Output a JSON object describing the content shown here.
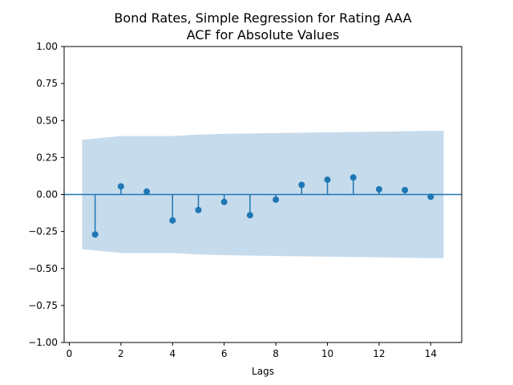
{
  "chart_data": {
    "type": "scatter",
    "subtype": "acf-stem",
    "title": "Bond Rates, Simple Regression for Rating AAA",
    "subtitle": "ACF for Absolute Values",
    "xlabel": "Lags",
    "ylabel": "",
    "xlim": [
      -0.2,
      15.2
    ],
    "ylim": [
      -1.0,
      1.0
    ],
    "xticks": [
      0,
      2,
      4,
      6,
      8,
      10,
      12,
      14
    ],
    "xtick_labels": [
      "0",
      "2",
      "4",
      "6",
      "8",
      "10",
      "12",
      "14"
    ],
    "yticks": [
      -1.0,
      -0.75,
      -0.5,
      -0.25,
      0.0,
      0.25,
      0.5,
      0.75,
      1.0
    ],
    "ytick_labels": [
      "−1.00",
      "−0.75",
      "−0.50",
      "−0.25",
      "0.00",
      "0.25",
      "0.50",
      "0.75",
      "1.00"
    ],
    "grid": false,
    "colors": {
      "series": "#1f77b4",
      "confidence_band": "#c6dbec"
    },
    "series": [
      {
        "lags": [
          1,
          2,
          3,
          4,
          5,
          6,
          7,
          8,
          9,
          10,
          11,
          12,
          13,
          14
        ],
        "values": [
          -0.27,
          0.055,
          0.02,
          -0.175,
          -0.105,
          -0.05,
          -0.14,
          -0.035,
          0.065,
          0.1,
          0.115,
          0.035,
          0.03,
          -0.015
        ]
      }
    ],
    "confidence_band": {
      "x": [
        0.5,
        2,
        4,
        5,
        6,
        8,
        10,
        12,
        14,
        14.5
      ],
      "upper": [
        0.37,
        0.395,
        0.395,
        0.405,
        0.41,
        0.415,
        0.42,
        0.425,
        0.43,
        0.43
      ],
      "lower": [
        -0.37,
        -0.395,
        -0.395,
        -0.405,
        -0.41,
        -0.415,
        -0.42,
        -0.425,
        -0.43,
        -0.43
      ]
    }
  }
}
